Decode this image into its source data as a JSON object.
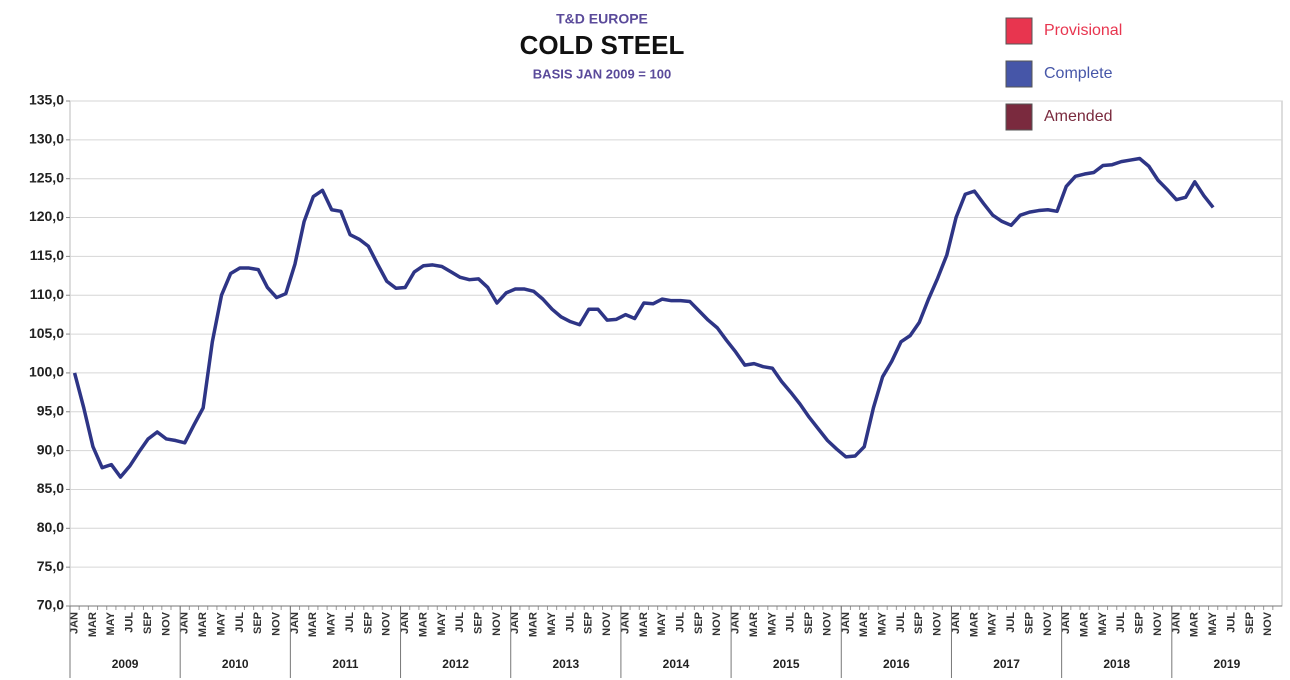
{
  "chart_data": {
    "type": "line",
    "supertitle": "T&D EUROPE",
    "title": "COLD STEEL",
    "subtitle": "BASIS JAN 2009 = 100",
    "legend": [
      {
        "name": "Provisional",
        "color": "#e8354f"
      },
      {
        "name": "Complete",
        "color": "#4656a8"
      },
      {
        "name": "Amended",
        "color": "#7a2a3e"
      }
    ],
    "line_color": "#2e3586",
    "grid": true,
    "ylim": [
      70,
      135
    ],
    "yticks": [
      {
        "value": 70,
        "label": "70,0"
      },
      {
        "value": 75,
        "label": "75,0"
      },
      {
        "value": 80,
        "label": "80,0"
      },
      {
        "value": 85,
        "label": "85,0"
      },
      {
        "value": 90,
        "label": "90,0"
      },
      {
        "value": 95,
        "label": "95,0"
      },
      {
        "value": 100,
        "label": "100,0"
      },
      {
        "value": 105,
        "label": "105,0"
      },
      {
        "value": 110,
        "label": "110,0"
      },
      {
        "value": 115,
        "label": "115,0"
      },
      {
        "value": 120,
        "label": "120,0"
      },
      {
        "value": 125,
        "label": "125,0"
      },
      {
        "value": 130,
        "label": "130,0"
      },
      {
        "value": 135,
        "label": "135,0"
      }
    ],
    "years": [
      "2009",
      "2010",
      "2011",
      "2012",
      "2013",
      "2014",
      "2015",
      "2016",
      "2017",
      "2018",
      "2019"
    ],
    "categories": [
      "JAN",
      null,
      "MAR",
      null,
      "MAY",
      null,
      "JUL",
      null,
      "SEP",
      null,
      "NOV",
      null,
      "JAN",
      null,
      "MAR",
      null,
      "MAY",
      null,
      "JUL",
      null,
      "SEP",
      null,
      "NOV",
      null,
      "JAN",
      null,
      "MAR",
      null,
      "MAY",
      null,
      "JUL",
      null,
      "SEP",
      null,
      "NOV",
      null,
      "JAN",
      null,
      "MAR",
      null,
      "MAY",
      null,
      "JUL",
      null,
      "SEP",
      null,
      "NOV",
      null,
      "JAN",
      null,
      "MAR",
      null,
      "MAY",
      null,
      "JUL",
      null,
      "SEP",
      null,
      "NOV",
      null,
      "JAN",
      null,
      "MAR",
      null,
      "MAY",
      null,
      "JUL",
      null,
      "SEP",
      null,
      "NOV",
      null,
      "JAN",
      null,
      "MAR",
      null,
      "MAY",
      null,
      "JUL",
      null,
      "SEP",
      null,
      "NOV",
      null,
      "JAN",
      null,
      "MAR",
      null,
      "MAY",
      null,
      "JUL",
      null,
      "SEP",
      null,
      "NOV",
      null,
      "JAN",
      null,
      "MAR",
      null,
      "MAY",
      null,
      "JUL",
      null,
      "SEP",
      null,
      "NOV",
      null,
      "JAN",
      null,
      "MAR",
      null,
      "MAY",
      null,
      "JUL",
      null,
      "SEP",
      null,
      "NOV",
      null,
      "JAN",
      null,
      "MAR",
      null,
      "MAY",
      null,
      "JUL",
      null,
      "SEP",
      null,
      "NOV",
      null
    ],
    "values": [
      100,
      95.5,
      90.5,
      87.8,
      88.2,
      86.6,
      88,
      89.8,
      91.5,
      92.4,
      91.5,
      91.3,
      91,
      93.3,
      95.5,
      104,
      110,
      112.8,
      113.5,
      113.5,
      113.3,
      111,
      109.7,
      110.2,
      114,
      119.5,
      122.7,
      123.5,
      121,
      120.8,
      117.8,
      117.2,
      116.3,
      114,
      111.8,
      110.9,
      111,
      113,
      113.8,
      113.9,
      113.7,
      113,
      112.3,
      112,
      112.1,
      111,
      109,
      110.3,
      110.8,
      110.8,
      110.5,
      109.5,
      108.2,
      107.2,
      106.6,
      106.2,
      108.2,
      108.2,
      106.8,
      106.9,
      107.5,
      107,
      109,
      108.9,
      109.5,
      109.3,
      109.3,
      109.2,
      108,
      106.8,
      105.8,
      104.2,
      102.7,
      101,
      101.2,
      100.8,
      100.6,
      98.9,
      97.5,
      96,
      94.3,
      92.8,
      91.3,
      90.2,
      89.2,
      89.3,
      90.5,
      95.5,
      99.5,
      101.5,
      104,
      104.8,
      106.5,
      109.5,
      112.2,
      115.2,
      120,
      123,
      123.4,
      121.8,
      120.3,
      119.5,
      119,
      120.3,
      120.7,
      120.9,
      121,
      120.8,
      124,
      125.3,
      125.6,
      125.8,
      126.7,
      126.8,
      127.2,
      127.4,
      127.6,
      126.6,
      124.8,
      123.6,
      122.3,
      122.6,
      124.6,
      122.8,
      121.3,
      null,
      null,
      null,
      null,
      null,
      null,
      null
    ]
  }
}
